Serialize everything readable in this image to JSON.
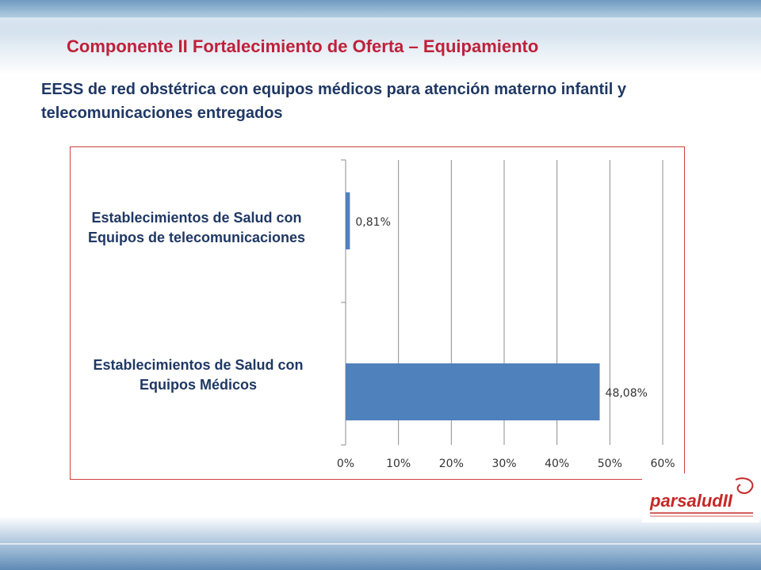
{
  "title": "Componente II Fortalecimiento de Oferta – Equipamiento",
  "subtitle": "EESS de red obstétrica con equipos médicos para atención materno  infantil y telecomunicaciones  entregados",
  "logo": {
    "text": "parsaludII"
  },
  "chart_data": {
    "type": "bar",
    "orientation": "horizontal",
    "categories": [
      "Establecimientos de Salud con Equipos de telecomunicaciones",
      "Establecimientos de Salud con Equipos Médicos"
    ],
    "values": [
      0.81,
      48.08
    ],
    "data_labels": [
      "0,81%",
      "48,08%"
    ],
    "xlim": [
      0,
      60
    ],
    "xticks": [
      0,
      10,
      20,
      30,
      40,
      50,
      60
    ],
    "xtick_labels": [
      "0%",
      "10%",
      "20%",
      "30%",
      "40%",
      "50%",
      "60%"
    ],
    "grid": true,
    "legend": "none",
    "bar_color": "#4f81bd"
  }
}
